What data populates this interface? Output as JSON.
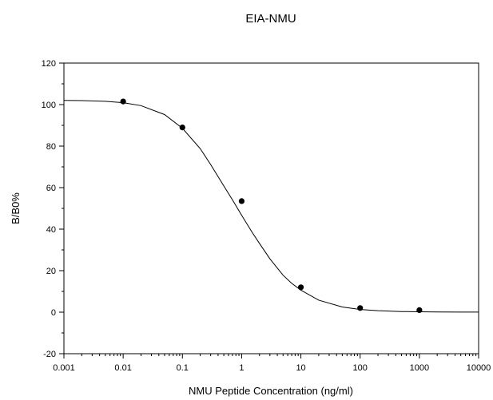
{
  "chart_data": {
    "type": "scatter",
    "title": "EIA-NMU",
    "xlabel": "NMU Peptide Concentration (ng/ml)",
    "ylabel": "B/B0%",
    "x_scale": "log",
    "xlim": [
      0.001,
      10000
    ],
    "ylim": [
      -20,
      120
    ],
    "x_ticks": [
      0.001,
      0.01,
      0.1,
      1,
      10,
      100,
      1000,
      10000
    ],
    "x_tick_labels": [
      "0.001",
      "0.01",
      "0.1",
      "1",
      "10",
      "100",
      "1000",
      "10000"
    ],
    "y_ticks": [
      -20,
      0,
      20,
      40,
      60,
      80,
      100,
      120
    ],
    "y_tick_labels": [
      "-20",
      "0",
      "20",
      "40",
      "60",
      "80",
      "100",
      "120"
    ],
    "grid": false,
    "legend": false,
    "series": [
      {
        "type": "scatter",
        "x": [
          0.01,
          0.1,
          1,
          10,
          100,
          1000
        ],
        "y": [
          101.5,
          89,
          53.5,
          12,
          2,
          1
        ]
      },
      {
        "type": "line",
        "x": [
          0.001,
          0.002,
          0.005,
          0.01,
          0.02,
          0.05,
          0.1,
          0.2,
          0.3,
          0.5,
          0.7,
          1,
          1.5,
          2,
          3,
          5,
          7,
          10,
          20,
          50,
          100,
          200,
          500,
          1000,
          2000,
          5000,
          10000
        ],
        "y": [
          102,
          101.9,
          101.6,
          100.9,
          99.5,
          95.2,
          88.6,
          78.8,
          71.1,
          60.8,
          54.1,
          46.7,
          38.5,
          33.1,
          25.7,
          17.8,
          13.9,
          10.6,
          5.8,
          2.5,
          1.3,
          0.7,
          0.3,
          0.2,
          0.1,
          0.05,
          0.03
        ]
      }
    ],
    "colors": {
      "marker": "#000000",
      "line": "#000000",
      "axis": "#000000"
    }
  }
}
